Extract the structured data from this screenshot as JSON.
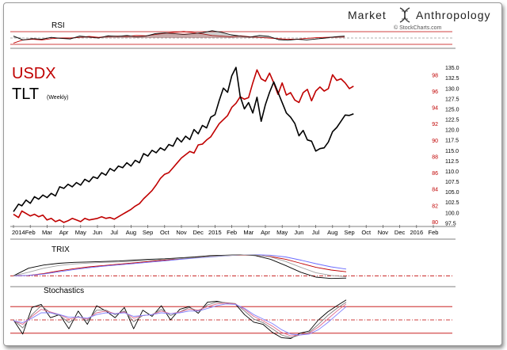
{
  "brand": {
    "name_part1": "Market",
    "name_part2": "Anthropology",
    "credit": "© StockCharts.com"
  },
  "chart_data": [
    {
      "type": "line",
      "panel": "RSI",
      "title": "RSI",
      "grid": false,
      "reference_lines": [
        70,
        50,
        30
      ],
      "series": [
        {
          "name": "",
          "color": "#c00000",
          "values": [
            34,
            44,
            46,
            44,
            48,
            50,
            50,
            52,
            55,
            52,
            55,
            56,
            55,
            58,
            57,
            61,
            65,
            68,
            71,
            67,
            63,
            58,
            56,
            54,
            57,
            54,
            52,
            50,
            48,
            46,
            46,
            49,
            51,
            52,
            53,
            55
          ]
        },
        {
          "name": "",
          "color": "#000000",
          "values": [
            56,
            44,
            48,
            46,
            52,
            49,
            47,
            56,
            53,
            50,
            57,
            55,
            58,
            54,
            56,
            64,
            66,
            64,
            61,
            64,
            67,
            73,
            68,
            60,
            56,
            53,
            58,
            55,
            45,
            43,
            46,
            44,
            47,
            50,
            54,
            56
          ]
        }
      ]
    },
    {
      "type": "line",
      "panel": "price",
      "title": "",
      "grid": false,
      "x_ticks": [
        "2014",
        "Feb",
        "Mar",
        "Apr",
        "May",
        "Jun",
        "Jul",
        "Aug",
        "Sep",
        "Oct",
        "Nov",
        "Dec",
        "2015",
        "Feb",
        "Mar",
        "Apr",
        "May",
        "Jun",
        "Jul",
        "Aug",
        "Sep",
        "Oct",
        "Nov",
        "Dec",
        "2016",
        "Feb"
      ],
      "left_axis": {
        "ticks": [
          80,
          82,
          84,
          86,
          88,
          90,
          92,
          94,
          96,
          98
        ],
        "range": [
          79.6,
          99.2
        ],
        "color": "#c00000"
      },
      "right_axis": {
        "ticks": [
          97.5,
          100.0,
          102.5,
          105.0,
          107.5,
          110.0,
          112.5,
          115.0,
          117.5,
          120.0,
          122.5,
          125.0,
          127.5,
          130.0,
          132.5,
          135.0
        ],
        "range": [
          97.0,
          135.6
        ],
        "color": "#000000"
      },
      "series": [
        {
          "name": "USDX",
          "color": "#c00000",
          "axis": "left",
          "x": [
            0,
            0.3,
            0.5,
            0.75,
            1,
            1.25,
            1.5,
            1.75,
            2,
            2.25,
            2.5,
            2.75,
            3,
            3.25,
            3.5,
            3.75,
            4,
            4.25,
            4.5,
            4.75,
            5,
            5.25,
            5.5,
            5.75,
            6,
            6.25,
            6.5,
            6.75,
            7,
            7.25,
            7.5,
            7.75,
            8,
            8.25,
            8.5,
            8.75,
            9,
            9.25,
            9.5,
            9.75,
            10,
            10.25,
            10.5,
            10.75,
            11,
            11.25,
            11.5,
            11.75,
            12,
            12.25,
            12.5,
            12.75,
            13,
            13.25,
            13.5,
            13.75,
            14,
            14.25,
            14.5,
            14.75,
            15,
            15.25,
            15.5,
            15.75,
            16,
            16.25,
            16.5,
            16.75,
            17,
            17.25,
            17.5,
            17.75,
            18,
            18.25,
            18.5,
            18.75,
            19,
            19.25,
            19.5,
            19.75,
            20,
            20.25
          ],
          "values": [
            80.9,
            80.5,
            81.3,
            81.0,
            80.7,
            80.9,
            80.6,
            80.8,
            80.2,
            80.4,
            80.0,
            80.2,
            79.9,
            80.1,
            80.4,
            80.2,
            80.0,
            80.4,
            80.2,
            80.3,
            80.4,
            80.6,
            80.4,
            80.5,
            80.3,
            80.6,
            80.9,
            81.2,
            81.5,
            81.9,
            82.2,
            82.8,
            83.3,
            83.8,
            84.5,
            85.3,
            85.8,
            86.0,
            86.6,
            87.2,
            87.8,
            88.2,
            88.6,
            88.4,
            89.4,
            89.5,
            90.0,
            90.4,
            91.2,
            92.0,
            92.5,
            93.0,
            94.0,
            94.5,
            95.3,
            95.0,
            95.2,
            97.0,
            98.6,
            97.5,
            97.2,
            98.2,
            97.0,
            95.6,
            97.0,
            95.5,
            95.8,
            94.9,
            94.6,
            95.8,
            96.2,
            94.8,
            96.0,
            96.5,
            96.0,
            96.3,
            98.0,
            97.3,
            97.5,
            97.0,
            96.3,
            96.6
          ]
        },
        {
          "name": "TLT",
          "sublabel": "(Weekly)",
          "color": "#000000",
          "axis": "right",
          "x": [
            0,
            0.3,
            0.5,
            0.75,
            1,
            1.25,
            1.5,
            1.75,
            2,
            2.25,
            2.5,
            2.75,
            3,
            3.25,
            3.5,
            3.75,
            4,
            4.25,
            4.5,
            4.75,
            5,
            5.25,
            5.5,
            5.75,
            6,
            6.25,
            6.5,
            6.75,
            7,
            7.25,
            7.5,
            7.75,
            8,
            8.25,
            8.5,
            8.75,
            9,
            9.25,
            9.5,
            9.75,
            10,
            10.25,
            10.5,
            10.75,
            11,
            11.25,
            11.5,
            11.75,
            12,
            12.25,
            12.5,
            12.75,
            13,
            13.25,
            13.5,
            13.75,
            14,
            14.25,
            14.5,
            14.75,
            15,
            15.25,
            15.5,
            15.75,
            16,
            16.25,
            16.5,
            16.75,
            17,
            17.25,
            17.5,
            17.75,
            18,
            18.25,
            18.5,
            18.75,
            19,
            19.25,
            19.5,
            19.75,
            20,
            20.25
          ],
          "values": [
            100.2,
            102.0,
            101.6,
            103.0,
            102.2,
            103.8,
            103.2,
            104.2,
            103.6,
            104.6,
            104.0,
            106.2,
            105.8,
            106.8,
            106.2,
            107.2,
            106.6,
            108.0,
            107.4,
            108.6,
            108.2,
            109.6,
            109.0,
            110.6,
            110.0,
            111.2,
            110.8,
            112.0,
            111.2,
            112.6,
            112.0,
            114.2,
            113.6,
            115.0,
            114.4,
            115.6,
            115.0,
            116.4,
            116.0,
            118.0,
            117.0,
            118.4,
            117.6,
            120.0,
            119.0,
            121.0,
            120.4,
            123.0,
            123.6,
            127.0,
            130.0,
            129.0,
            133.0,
            135.0,
            128.0,
            125.0,
            126.5,
            124.0,
            127.8,
            122.0,
            126.0,
            129.0,
            131.5,
            129.0,
            126.5,
            124.0,
            123.0,
            121.5,
            118.5,
            119.8,
            117.5,
            117.2,
            114.8,
            115.4,
            115.6,
            117.0,
            119.5,
            120.5,
            122.0,
            123.5,
            123.4,
            123.8
          ]
        }
      ]
    },
    {
      "type": "line",
      "panel": "TRIX",
      "title": "TRIX",
      "grid": false,
      "reference_lines": [
        0
      ],
      "series": [
        {
          "name": "",
          "color": "#c00000",
          "values": [
            0.0,
            0.02,
            0.1,
            0.22,
            0.32,
            0.4,
            0.46,
            0.52,
            0.58,
            0.64,
            0.7,
            0.76,
            0.82,
            0.86,
            0.9,
            0.92,
            0.92,
            0.86,
            0.74,
            0.56,
            0.38,
            0.26,
            0.18
          ]
        },
        {
          "name": "",
          "color": "#6a6aff",
          "values": [
            0.0,
            0.02,
            0.08,
            0.18,
            0.28,
            0.36,
            0.43,
            0.49,
            0.55,
            0.61,
            0.67,
            0.73,
            0.79,
            0.84,
            0.89,
            0.93,
            0.94,
            0.92,
            0.84,
            0.7,
            0.54,
            0.4,
            0.3
          ]
        },
        {
          "name": "",
          "color": "#000000",
          "values": [
            0.0,
            0.34,
            0.48,
            0.56,
            0.6,
            0.62,
            0.64,
            0.66,
            0.7,
            0.74,
            0.76,
            0.8,
            0.84,
            0.9,
            0.92,
            0.94,
            0.9,
            0.74,
            0.46,
            0.16,
            -0.06,
            -0.12,
            -0.1
          ]
        },
        {
          "name": "",
          "color": "#a0a0a0",
          "values": [
            0.0,
            0.16,
            0.34,
            0.46,
            0.53,
            0.57,
            0.6,
            0.62,
            0.65,
            0.69,
            0.73,
            0.77,
            0.81,
            0.86,
            0.9,
            0.93,
            0.93,
            0.84,
            0.64,
            0.38,
            0.14,
            0.02,
            -0.04
          ]
        }
      ]
    },
    {
      "type": "line",
      "panel": "Stochastics",
      "title": "Stochastics",
      "grid": false,
      "reference_lines": [
        80,
        50,
        20
      ],
      "series": [
        {
          "name": "",
          "color": "#000000",
          "values": [
            50,
            18,
            78,
            85,
            55,
            62,
            30,
            70,
            40,
            82,
            70,
            55,
            78,
            30,
            72,
            58,
            82,
            50,
            74,
            80,
            65,
            90,
            92,
            88,
            86,
            62,
            45,
            40,
            22,
            10,
            8,
            20,
            25,
            50,
            68,
            82,
            95
          ]
        },
        {
          "name": "",
          "color": "#7a7a7a",
          "values": [
            50,
            32,
            62,
            82,
            66,
            60,
            44,
            58,
            48,
            72,
            72,
            62,
            70,
            46,
            60,
            62,
            74,
            60,
            68,
            78,
            70,
            84,
            90,
            89,
            87,
            70,
            52,
            44,
            30,
            16,
            10,
            16,
            22,
            40,
            60,
            76,
            90
          ]
        },
        {
          "name": "",
          "color": "#e06a8c",
          "values": [
            48,
            40,
            58,
            74,
            68,
            62,
            52,
            56,
            52,
            66,
            70,
            64,
            68,
            54,
            60,
            62,
            70,
            64,
            68,
            74,
            72,
            80,
            86,
            88,
            86,
            74,
            58,
            48,
            36,
            22,
            14,
            16,
            20,
            34,
            52,
            70,
            86
          ]
        },
        {
          "name": "",
          "color": "#8080ff",
          "values": [
            48,
            44,
            54,
            66,
            66,
            62,
            56,
            56,
            54,
            62,
            66,
            64,
            66,
            58,
            60,
            62,
            66,
            64,
            66,
            70,
            70,
            76,
            82,
            86,
            85,
            76,
            62,
            52,
            42,
            28,
            18,
            16,
            18,
            28,
            44,
            62,
            80
          ]
        }
      ]
    }
  ]
}
